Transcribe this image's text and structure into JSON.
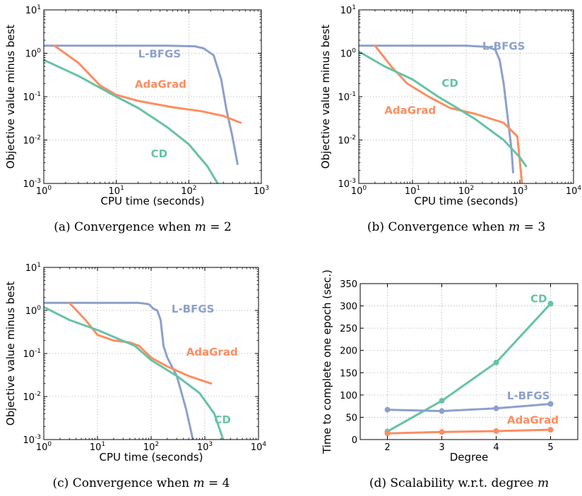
{
  "colors": {
    "L-BFGS": "#8da0cb",
    "AdaGrad": "#fc8d62",
    "CD": "#66c2a5"
  },
  "chart_data": [
    {
      "type": "line",
      "caption": "(a) Convergence when m = 2",
      "caption_prefix": "(a) Convergence when ",
      "caption_var": "m",
      "caption_suffix": " = 2",
      "xlabel": "CPU time (seconds)",
      "ylabel": "Objective value minus best",
      "xscale": "log",
      "yscale": "log",
      "xlim": [
        1,
        1000
      ],
      "ylim": [
        0.001,
        10
      ],
      "xticks": [
        {
          "value": 1,
          "base": "10",
          "exp": "0"
        },
        {
          "value": 10,
          "base": "10",
          "exp": "1"
        },
        {
          "value": 100,
          "base": "10",
          "exp": "2"
        },
        {
          "value": 1000,
          "base": "10",
          "exp": "3"
        }
      ],
      "yticks": [
        {
          "value": 0.001,
          "base": "10",
          "exp": "-3"
        },
        {
          "value": 0.01,
          "base": "10",
          "exp": "-2"
        },
        {
          "value": 0.1,
          "base": "10",
          "exp": "-1"
        },
        {
          "value": 1,
          "base": "10",
          "exp": "0"
        },
        {
          "value": 10,
          "base": "10",
          "exp": "1"
        }
      ],
      "grid": true,
      "series": [
        {
          "name": "L-BFGS",
          "label_at": [
            20,
            0.8
          ],
          "points": [
            [
              1,
              1.5
            ],
            [
              50,
              1.5
            ],
            [
              120,
              1.45
            ],
            [
              160,
              1.3
            ],
            [
              220,
              0.9
            ],
            [
              280,
              0.25
            ],
            [
              330,
              0.05
            ],
            [
              400,
              0.012
            ],
            [
              470,
              0.0028
            ]
          ]
        },
        {
          "name": "AdaGrad",
          "label_at": [
            18,
            0.16
          ],
          "points": [
            [
              1.4,
              1.5
            ],
            [
              3,
              0.6
            ],
            [
              6,
              0.18
            ],
            [
              10,
              0.11
            ],
            [
              20,
              0.08
            ],
            [
              60,
              0.057
            ],
            [
              150,
              0.046
            ],
            [
              300,
              0.036
            ],
            [
              520,
              0.025
            ]
          ]
        },
        {
          "name": "CD",
          "label_at": [
            30,
            0.004
          ],
          "points": [
            [
              1,
              0.7
            ],
            [
              3,
              0.3
            ],
            [
              10,
              0.1
            ],
            [
              20,
              0.055
            ],
            [
              50,
              0.02
            ],
            [
              100,
              0.008
            ],
            [
              180,
              0.0025
            ],
            [
              250,
              0.001
            ]
          ]
        }
      ]
    },
    {
      "type": "line",
      "caption": "(b) Convergence when m = 3",
      "caption_prefix": "(b) Convergence when ",
      "caption_var": "m",
      "caption_suffix": " = 3",
      "xlabel": "CPU time (seconds)",
      "ylabel": "Objective value minus best",
      "xscale": "log",
      "yscale": "log",
      "xlim": [
        1,
        10000
      ],
      "ylim": [
        0.001,
        10
      ],
      "xticks": [
        {
          "value": 1,
          "base": "10",
          "exp": "0"
        },
        {
          "value": 10,
          "base": "10",
          "exp": "1"
        },
        {
          "value": 100,
          "base": "10",
          "exp": "2"
        },
        {
          "value": 1000,
          "base": "10",
          "exp": "3"
        },
        {
          "value": 10000,
          "base": "10",
          "exp": "4"
        }
      ],
      "yticks": [
        {
          "value": 0.001,
          "base": "10",
          "exp": "-3"
        },
        {
          "value": 0.01,
          "base": "10",
          "exp": "-2"
        },
        {
          "value": 0.1,
          "base": "10",
          "exp": "-1"
        },
        {
          "value": 1,
          "base": "10",
          "exp": "0"
        },
        {
          "value": 10,
          "base": "10",
          "exp": "1"
        }
      ],
      "grid": true,
      "series": [
        {
          "name": "L-BFGS",
          "label_at": [
            200,
            1.2
          ],
          "points": [
            [
              1,
              1.5
            ],
            [
              100,
              1.5
            ],
            [
              250,
              1.4
            ],
            [
              350,
              1.2
            ],
            [
              420,
              0.7
            ],
            [
              500,
              0.2
            ],
            [
              600,
              0.03
            ],
            [
              700,
              0.006
            ],
            [
              750,
              0.0018
            ]
          ]
        },
        {
          "name": "AdaGrad",
          "label_at": [
            3,
            0.04
          ],
          "points": [
            [
              2,
              1.5
            ],
            [
              4,
              0.5
            ],
            [
              8,
              0.2
            ],
            [
              20,
              0.1
            ],
            [
              50,
              0.055
            ],
            [
              150,
              0.04
            ],
            [
              500,
              0.025
            ],
            [
              900,
              0.012
            ],
            [
              1100,
              0.001
            ]
          ]
        },
        {
          "name": "CD",
          "label_at": [
            35,
            0.17
          ],
          "points": [
            [
              1,
              1.1
            ],
            [
              3,
              0.5
            ],
            [
              10,
              0.25
            ],
            [
              30,
              0.1
            ],
            [
              60,
              0.06
            ],
            [
              150,
              0.03
            ],
            [
              500,
              0.01
            ],
            [
              1000,
              0.004
            ],
            [
              1300,
              0.0025
            ]
          ]
        }
      ]
    },
    {
      "type": "line",
      "caption": "(c) Convergence when m = 4",
      "caption_prefix": "(c) Convergence when ",
      "caption_var": "m",
      "caption_suffix": " = 4",
      "xlabel": "CPU time (seconds)",
      "ylabel": "Objective value minus best",
      "xscale": "log",
      "yscale": "log",
      "xlim": [
        1,
        10000
      ],
      "ylim": [
        0.001,
        10
      ],
      "xticks": [
        {
          "value": 1,
          "base": "10",
          "exp": "0"
        },
        {
          "value": 10,
          "base": "10",
          "exp": "1"
        },
        {
          "value": 100,
          "base": "10",
          "exp": "2"
        },
        {
          "value": 1000,
          "base": "10",
          "exp": "3"
        },
        {
          "value": 10000,
          "base": "10",
          "exp": "4"
        }
      ],
      "yticks": [
        {
          "value": 0.001,
          "base": "10",
          "exp": "-3"
        },
        {
          "value": 0.01,
          "base": "10",
          "exp": "-2"
        },
        {
          "value": 0.1,
          "base": "10",
          "exp": "-1"
        },
        {
          "value": 1,
          "base": "10",
          "exp": "0"
        },
        {
          "value": 10,
          "base": "10",
          "exp": "1"
        }
      ],
      "grid": true,
      "series": [
        {
          "name": "L-BFGS",
          "label_at": [
            240,
            0.9
          ],
          "points": [
            [
              1,
              1.5
            ],
            [
              60,
              1.5
            ],
            [
              90,
              1.4
            ],
            [
              110,
              1.1
            ],
            [
              130,
              1.0
            ],
            [
              150,
              0.6
            ],
            [
              170,
              0.15
            ],
            [
              200,
              0.08
            ],
            [
              300,
              0.03
            ],
            [
              450,
              0.005
            ],
            [
              600,
              0.001
            ]
          ]
        },
        {
          "name": "AdaGrad",
          "label_at": [
            450,
            0.09
          ],
          "points": [
            [
              3,
              1.5
            ],
            [
              6,
              0.6
            ],
            [
              10,
              0.27
            ],
            [
              20,
              0.2
            ],
            [
              40,
              0.18
            ],
            [
              60,
              0.15
            ],
            [
              100,
              0.08
            ],
            [
              200,
              0.05
            ],
            [
              500,
              0.03
            ],
            [
              1300,
              0.02
            ]
          ]
        },
        {
          "name": "CD",
          "label_at": [
            1500,
            0.0024
          ],
          "points": [
            [
              1,
              1.2
            ],
            [
              3,
              0.6
            ],
            [
              10,
              0.35
            ],
            [
              50,
              0.15
            ],
            [
              100,
              0.07
            ],
            [
              300,
              0.03
            ],
            [
              800,
              0.012
            ],
            [
              1500,
              0.004
            ],
            [
              2200,
              0.001
            ]
          ]
        }
      ]
    },
    {
      "type": "line",
      "caption": "(d) Scalability w.r.t. degree m",
      "caption_prefix": "(d) Scalability w.r.t. degree ",
      "caption_var": "m",
      "caption_suffix": "",
      "xlabel": "Degree",
      "ylabel": "Time to complete one epoch (sec.)",
      "xscale": "linear",
      "yscale": "linear",
      "xlim": [
        1.5,
        5.5
      ],
      "ylim": [
        0,
        350
      ],
      "xticks": [
        {
          "value": 2,
          "label": "2"
        },
        {
          "value": 3,
          "label": "3"
        },
        {
          "value": 4,
          "label": "4"
        },
        {
          "value": 5,
          "label": "5"
        }
      ],
      "yticks": [
        {
          "value": 0,
          "label": "0"
        },
        {
          "value": 50,
          "label": "50"
        },
        {
          "value": 100,
          "label": "100"
        },
        {
          "value": 150,
          "label": "150"
        },
        {
          "value": 200,
          "label": "200"
        },
        {
          "value": 250,
          "label": "250"
        },
        {
          "value": 300,
          "label": "300"
        },
        {
          "value": 350,
          "label": "350"
        }
      ],
      "grid": true,
      "markers": true,
      "series": [
        {
          "name": "CD",
          "label_at": [
            4.63,
            308
          ],
          "points": [
            [
              2,
              18
            ],
            [
              3,
              87
            ],
            [
              4,
              173
            ],
            [
              5,
              305
            ]
          ]
        },
        {
          "name": "L-BFGS",
          "label_at": [
            4.2,
            90
          ],
          "points": [
            [
              2,
              67
            ],
            [
              3,
              64
            ],
            [
              4,
              70
            ],
            [
              5,
              80
            ]
          ]
        },
        {
          "name": "AdaGrad",
          "label_at": [
            4.2,
            36
          ],
          "points": [
            [
              2,
              14
            ],
            [
              3,
              17
            ],
            [
              4,
              19
            ],
            [
              5,
              22
            ]
          ]
        }
      ]
    }
  ]
}
